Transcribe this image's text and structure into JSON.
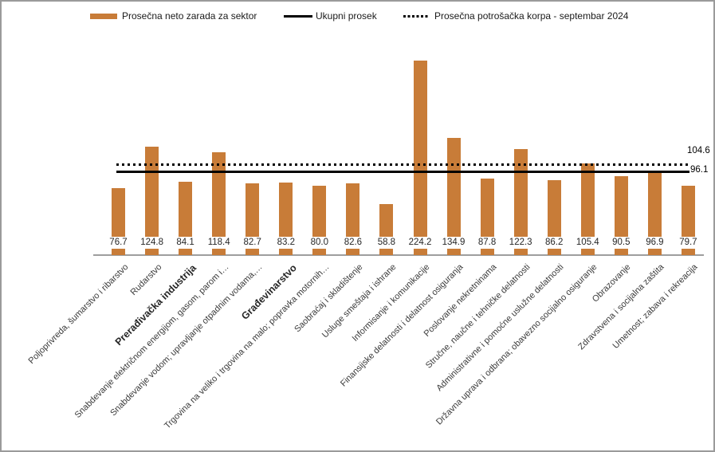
{
  "colors": {
    "bar": "#C87C38",
    "average_line": "#000000",
    "basket_line": "#000000",
    "axis_line": "#9E9E9E",
    "frame_border": "#9A9A9A"
  },
  "legend": {
    "position": "top",
    "items": [
      {
        "label": "Prosečna neto zarada za sektor",
        "swatch": "bar-swatch"
      },
      {
        "label": "Ukupni prosek",
        "swatch": "solid-line-swatch"
      },
      {
        "label": "Prosečna potrošačka korpa - septembar 2024",
        "swatch": "dotted-line-swatch"
      }
    ]
  },
  "chart_data": {
    "type": "bar",
    "title": "",
    "xlabel": "",
    "ylabel": "",
    "grid": false,
    "legend_position": "top",
    "ylim": [
      0,
      245
    ],
    "categories": [
      "Poljoprivreda, šumarstvo i ribarstvo",
      "Rudarstvo",
      "Prerađivačka industrija",
      "Snabdevanje električnom energijom, gasom, parom i…",
      "Snabdevanje vodom; upravljanje otpadnim vodama,…",
      "Građevinarstvo",
      "Trgovina na veliko i trgovina na malo; popravka motornih…",
      "Saobraćaj i skladištenje",
      "Usluge smeštaja i ishrane",
      "Informisanje i komunikacije",
      "Finansijske delatnosti i delatnost osiguranja",
      "Poslovanje nekretninama",
      "Stručne, naučne i tehničke delatnosti",
      "Administrativne i pomoćne uslužne delatnosti",
      "Državna uprava i odbrana; obavezno socijalno osiguranje",
      "Obrazovanje",
      "Zdravstvena i socijalna zaštita",
      "Umetnost; zabava i rekreacija"
    ],
    "bold_categories": [
      "Prerađivačka industrija",
      "Građevinarstvo"
    ],
    "series": [
      {
        "name": "Prosečna neto zarada za sektor",
        "type": "bar",
        "values": [
          76.7,
          124.8,
          84.1,
          118.4,
          82.7,
          83.2,
          80.0,
          82.6,
          58.8,
          224.2,
          134.9,
          87.8,
          122.3,
          86.2,
          105.4,
          90.5,
          96.9,
          79.7
        ]
      },
      {
        "name": "Ukupni prosek",
        "type": "line",
        "style": "solid",
        "value": 96.1,
        "label": "96.1"
      },
      {
        "name": "Prosečna potrošačka korpa - septembar 2024",
        "type": "line",
        "style": "dotted",
        "value": 104.6,
        "label": "104.6"
      }
    ]
  }
}
